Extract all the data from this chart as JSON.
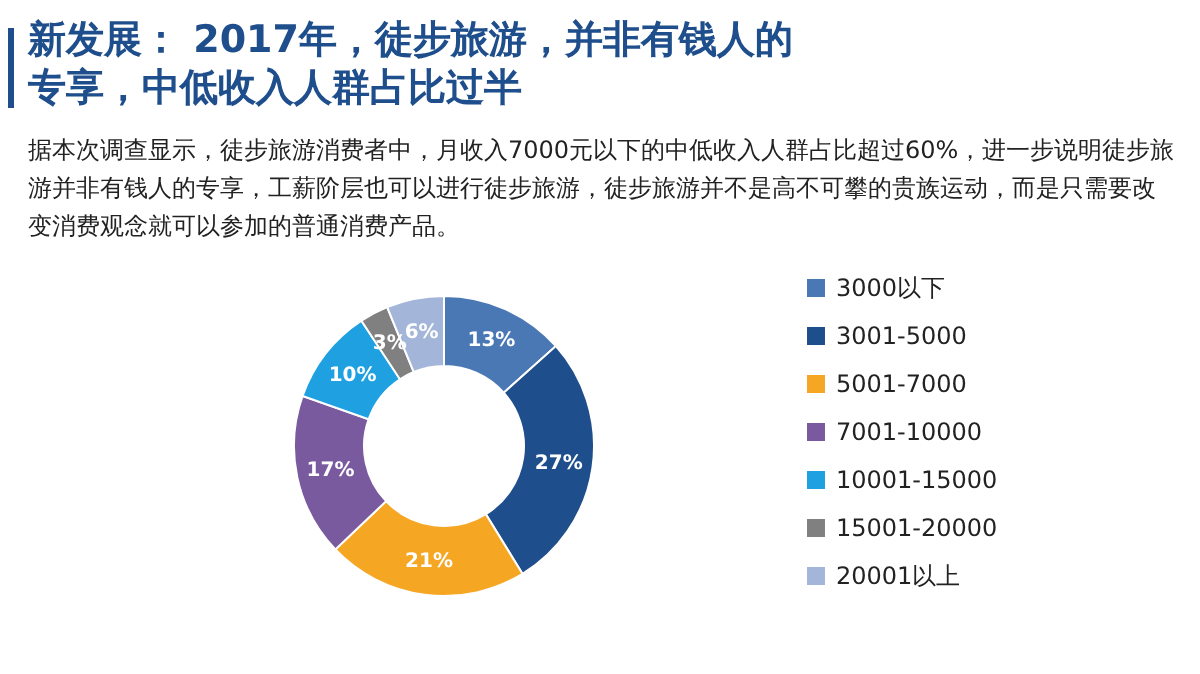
{
  "chart_data": {
    "type": "donut",
    "title": "新发展： 2017年，徒步旅游，并非有钱人的专享，中低收入人群占比过半",
    "subtitle": "据本次调查显示，徒步旅游消费者中，月收入7000元以下的中低收入人群占比超过60%，进一步说明徒步旅游并非有钱人的专享，工薪阶层也可以进行徒步旅游，徒步旅游并不是高不可攀的贵族运动，而是只需要改变消费观念就可以参加的普通消费产品。",
    "categories": [
      "3000以下",
      "3001-5000",
      "5001-7000",
      "7001-10000",
      "10001-15000",
      "15001-20000",
      "20001以上"
    ],
    "values": [
      13,
      27,
      21,
      17,
      10,
      3,
      6
    ],
    "value_labels": [
      "13%",
      "27%",
      "21%",
      "17%",
      "10%",
      "3%",
      "6%"
    ],
    "colors": [
      "#4a78b5",
      "#1f4e8c",
      "#f5a623",
      "#7a5a9e",
      "#1fa0e0",
      "#808080",
      "#a3b6d9"
    ],
    "legend": "right"
  }
}
